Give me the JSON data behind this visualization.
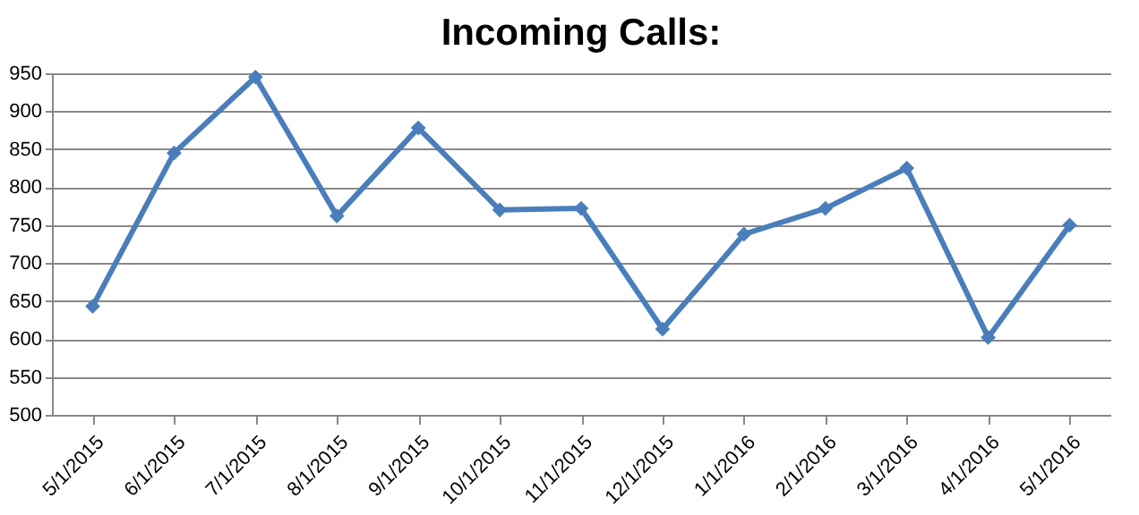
{
  "chart_data": {
    "type": "line",
    "title": "Incoming Calls:",
    "categories": [
      "5/1/2015",
      "6/1/2015",
      "7/1/2015",
      "8/1/2015",
      "9/1/2015",
      "10/1/2015",
      "11/1/2015",
      "12/1/2015",
      "1/1/2016",
      "2/1/2016",
      "3/1/2016",
      "4/1/2016",
      "5/1/2016"
    ],
    "series": [
      {
        "color": "#4a7ebb",
        "values": [
          643,
          845,
          945,
          762,
          878,
          770,
          772,
          613,
          738,
          772,
          825,
          602,
          750
        ]
      }
    ],
    "ylim": [
      500,
      950
    ],
    "yticks": [
      500,
      550,
      600,
      650,
      700,
      750,
      800,
      850,
      900,
      950
    ],
    "grid": "y",
    "marker": "diamond",
    "legend": false
  }
}
